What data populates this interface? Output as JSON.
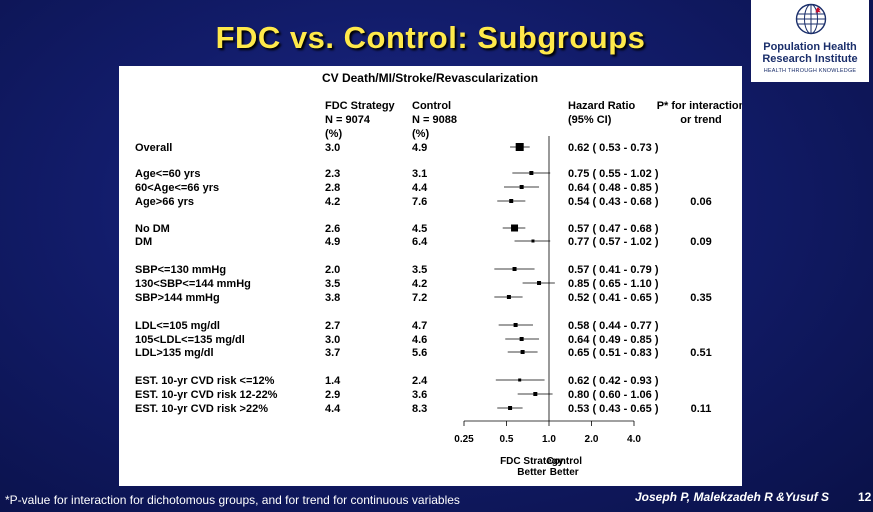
{
  "slide": {
    "title": "FDC vs. Control: Subgroups",
    "footnote": "*P-value for interaction for dichotomous groups, and for trend for continuous variables",
    "authors": "Joseph P, Malekzadeh R &Yusuf S",
    "page_number": "12"
  },
  "logo": {
    "line1": "Population Health",
    "line2": "Research Institute",
    "tagline": "HEALTH THROUGH KNOWLEDGE",
    "icon": "globe-icon",
    "accent_color": "#c8102e"
  },
  "chart_data": {
    "type": "forest",
    "title": "CV Death/MI/Stroke/Revascularization",
    "headers": {
      "fdc": [
        "FDC Strategy",
        "N = 9074",
        "(%)"
      ],
      "control": [
        "Control",
        "N = 9088",
        "(%)"
      ],
      "hr": [
        "Hazard Ratio",
        "(95% CI)"
      ],
      "p": [
        "P* for interaction",
        "or trend"
      ]
    },
    "x_axis": {
      "scale": "log",
      "ticks": [
        0.25,
        0.5,
        1.0,
        2.0,
        4.0
      ],
      "tick_labels": [
        "0.25",
        "0.5",
        "1.0",
        "2.0",
        "4.0"
      ],
      "left_label": [
        "FDC Strategy",
        "Better"
      ],
      "right_label": [
        "Control",
        "Better"
      ]
    },
    "rows": [
      {
        "label": "Overall",
        "fdc": "3.0",
        "control": "4.9",
        "hr": 0.62,
        "lo": 0.53,
        "hi": 0.73,
        "ci_text": "0.62 ( 0.53 - 0.73 )",
        "p": "",
        "size": 8
      },
      {
        "label": "Age<=60 yrs",
        "fdc": "2.3",
        "control": "3.1",
        "hr": 0.75,
        "lo": 0.55,
        "hi": 1.02,
        "ci_text": "0.75 ( 0.55 - 1.02 )",
        "p": "",
        "size": 4
      },
      {
        "label": "60<Age<=66 yrs",
        "fdc": "2.8",
        "control": "4.4",
        "hr": 0.64,
        "lo": 0.48,
        "hi": 0.85,
        "ci_text": "0.64 ( 0.48 - 0.85 )",
        "p": "",
        "size": 4
      },
      {
        "label": "Age>66 yrs",
        "fdc": "4.2",
        "control": "7.6",
        "hr": 0.54,
        "lo": 0.43,
        "hi": 0.68,
        "ci_text": "0.54 ( 0.43 - 0.68 )",
        "p": "0.06",
        "size": 4
      },
      {
        "label": "No DM",
        "fdc": "2.6",
        "control": "4.5",
        "hr": 0.57,
        "lo": 0.47,
        "hi": 0.68,
        "ci_text": "0.57 ( 0.47 - 0.68 )",
        "p": "",
        "size": 7
      },
      {
        "label": "DM",
        "fdc": "4.9",
        "control": "6.4",
        "hr": 0.77,
        "lo": 0.57,
        "hi": 1.02,
        "ci_text": "0.77 ( 0.57 - 1.02 )",
        "p": "0.09",
        "size": 3
      },
      {
        "label": "SBP<=130 mmHg",
        "fdc": "2.0",
        "control": "3.5",
        "hr": 0.57,
        "lo": 0.41,
        "hi": 0.79,
        "ci_text": "0.57 ( 0.41 - 0.79 )",
        "p": "",
        "size": 4
      },
      {
        "label": "130<SBP<=144 mmHg",
        "fdc": "3.5",
        "control": "4.2",
        "hr": 0.85,
        "lo": 0.65,
        "hi": 1.1,
        "ci_text": "0.85 ( 0.65 - 1.10 )",
        "p": "",
        "size": 4
      },
      {
        "label": "SBP>144 mmHg",
        "fdc": "3.8",
        "control": "7.2",
        "hr": 0.52,
        "lo": 0.41,
        "hi": 0.65,
        "ci_text": "0.52 ( 0.41 - 0.65 )",
        "p": "0.35",
        "size": 4
      },
      {
        "label": "LDL<=105 mg/dl",
        "fdc": "2.7",
        "control": "4.7",
        "hr": 0.58,
        "lo": 0.44,
        "hi": 0.77,
        "ci_text": "0.58 ( 0.44 - 0.77 )",
        "p": "",
        "size": 4
      },
      {
        "label": "105<LDL<=135 mg/dl",
        "fdc": "3.0",
        "control": "4.6",
        "hr": 0.64,
        "lo": 0.49,
        "hi": 0.85,
        "ci_text": "0.64 ( 0.49 - 0.85 )",
        "p": "",
        "size": 4
      },
      {
        "label": "LDL>135 mg/dl",
        "fdc": "3.7",
        "control": "5.6",
        "hr": 0.65,
        "lo": 0.51,
        "hi": 0.83,
        "ci_text": "0.65 ( 0.51 - 0.83 )",
        "p": "0.51",
        "size": 4
      },
      {
        "label": "EST. 10-yr CVD risk <=12%",
        "fdc": "1.4",
        "control": "2.4",
        "hr": 0.62,
        "lo": 0.42,
        "hi": 0.93,
        "ci_text": "0.62 ( 0.42 - 0.93 )",
        "p": "",
        "size": 3
      },
      {
        "label": "EST. 10-yr CVD risk 12-22%",
        "fdc": "2.9",
        "control": "3.6",
        "hr": 0.8,
        "lo": 0.6,
        "hi": 1.06,
        "ci_text": "0.80 ( 0.60 - 1.06 )",
        "p": "",
        "size": 4
      },
      {
        "label": "EST. 10-yr CVD risk >22%",
        "fdc": "4.4",
        "control": "8.3",
        "hr": 0.53,
        "lo": 0.43,
        "hi": 0.65,
        "ci_text": "0.53 ( 0.43 - 0.65 )",
        "p": "0.11",
        "size": 4
      }
    ]
  }
}
